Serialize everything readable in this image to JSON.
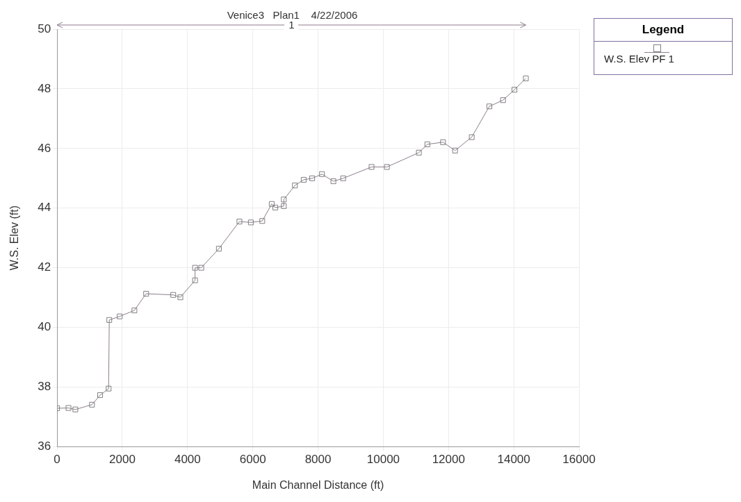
{
  "chart_data": {
    "type": "line",
    "title": "Venice3   Plan1    4/22/2006",
    "xlabel": "Main Channel Distance (ft)",
    "ylabel": "W.S. Elev (ft)",
    "legend_title": "Legend",
    "legend": "top right",
    "grid": true,
    "marker": "square",
    "line_style": "solid",
    "xlim": [
      0,
      16000
    ],
    "xticks": [
      0,
      2000,
      4000,
      6000,
      8000,
      10000,
      12000,
      14000,
      16000
    ],
    "ylim": [
      36,
      50
    ],
    "yticks": [
      36,
      38,
      40,
      42,
      44,
      46,
      48,
      50
    ],
    "annotations": [
      "1"
    ],
    "series": [
      {
        "name": "W.S. Elev PF 1",
        "color": "#8c7f8c",
        "x": [
          0,
          350,
          560,
          1070,
          1320,
          1580,
          1600,
          1920,
          2370,
          2730,
          3560,
          3780,
          4230,
          4230,
          4420,
          4960,
          5590,
          5940,
          6290,
          6580,
          6690,
          6950,
          6950,
          7290,
          7560,
          7820,
          8120,
          8470,
          8770,
          9640,
          10110,
          11090,
          11350,
          11830,
          12200,
          12710,
          13250,
          13670,
          14020,
          14370
        ],
        "values": [
          37.29,
          37.3,
          37.25,
          37.41,
          37.73,
          37.95,
          40.25,
          40.37,
          40.57,
          41.13,
          41.09,
          41.01,
          41.58,
          42.0,
          42.0,
          42.64,
          43.55,
          43.52,
          43.57,
          44.14,
          44.02,
          44.07,
          44.29,
          44.76,
          44.95,
          45.0,
          45.14,
          44.9,
          45.0,
          45.38,
          45.38,
          45.86,
          46.14,
          46.21,
          45.93,
          46.38,
          47.41,
          47.62,
          47.97,
          48.35
        ]
      }
    ]
  }
}
